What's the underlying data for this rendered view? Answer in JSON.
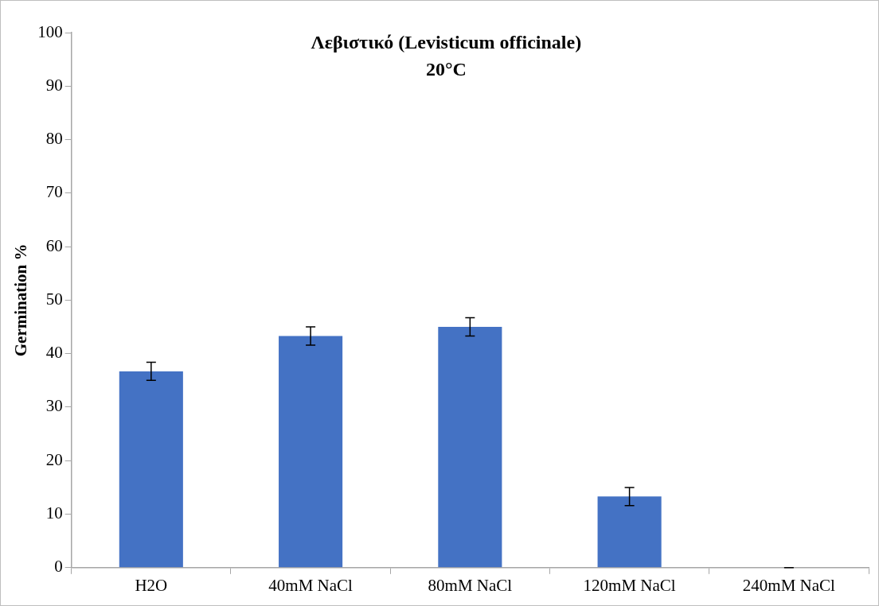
{
  "chart_data": {
    "type": "bar",
    "title": "Λεβιστικό (Levisticum officinale)",
    "subtitle": "20°C",
    "ylabel": "Germination %",
    "categories": [
      "H2O",
      "40mM NaCl",
      "80mM NaCl",
      "120mM NaCl",
      "240mM NaCl"
    ],
    "values": [
      36.7,
      43.3,
      45,
      13.3,
      0
    ],
    "errors": [
      1.7,
      1.7,
      1.7,
      1.7,
      0
    ],
    "color": "#4472c4",
    "ylim": [
      0,
      100
    ],
    "yticks": [
      0,
      10,
      20,
      30,
      40,
      50,
      60,
      70,
      80,
      90,
      100
    ],
    "grid": false,
    "legend": false
  }
}
